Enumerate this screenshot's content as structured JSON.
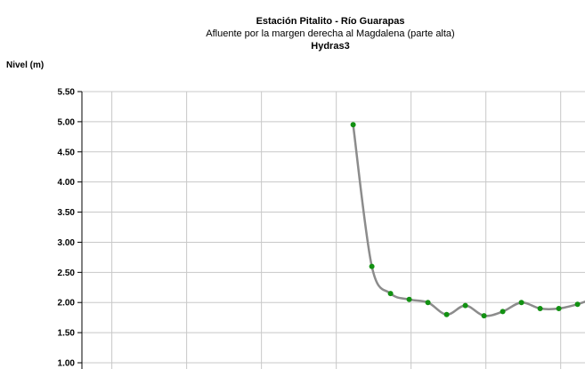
{
  "chart_data": {
    "type": "line",
    "title": "Estación Pitalito  - Río Guarapas",
    "subtitle": "Afluente por la margen derecha al Magdalena (parte alta)",
    "title3": "Hydras3",
    "ylabel": "Nivel (m)",
    "ylim": [
      1.0,
      5.5
    ],
    "ytick_labels": [
      "5.50",
      "5.00",
      "4.50",
      "4.00",
      "3.50",
      "3.00",
      "2.50",
      "2.00",
      "1.50",
      "1.00"
    ],
    "x": [
      0,
      1,
      2,
      3,
      4,
      5,
      6,
      7,
      8,
      9,
      10,
      11,
      12
    ],
    "xlim": [
      -14.5,
      12.4
    ],
    "x_gridlines": [
      -12.9,
      -8.9,
      -4.9,
      -0.9,
      3.1,
      7.1,
      11.1
    ],
    "values": [
      4.95,
      2.6,
      2.15,
      2.05,
      2.0,
      1.8,
      1.95,
      1.78,
      1.85,
      2.0,
      1.9,
      1.9,
      1.97
    ],
    "line_color": "#8c8c8c",
    "marker_color": "#129112",
    "grid": true
  }
}
